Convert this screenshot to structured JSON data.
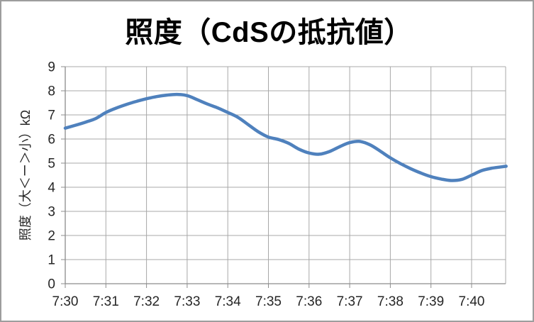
{
  "window": {
    "background": "#FFFFFF",
    "border_color": "#9D9D9D"
  },
  "chart_data": {
    "type": "line",
    "title": "照度（CdSの抵抗値）",
    "ylabel": "照度（大＜ー＞小）kΩ",
    "xlabel": "",
    "x_tick_labels": [
      "7:30",
      "7:31",
      "7:32",
      "7:33",
      "7:34",
      "7:35",
      "7:36",
      "7:37",
      "7:38",
      "7:39",
      "7:40"
    ],
    "y_tick_labels": [
      "0",
      "1",
      "2",
      "3",
      "4",
      "5",
      "6",
      "7",
      "8",
      "9"
    ],
    "ylim": [
      0,
      9
    ],
    "xlim_minutes_after_7_30": [
      0,
      10.85
    ],
    "grid": "on",
    "legend": "none",
    "smooth_line": true,
    "colors": {
      "line": "#4F81BD",
      "grid": "#A8A8A8",
      "axis": "#8C8C8C",
      "tick_text": "#262626",
      "title_text": "#000000"
    },
    "series": [
      {
        "name": "照度（CdSの抵抗値）",
        "x_minutes_after_7_30": [
          0,
          0.25,
          0.5,
          0.75,
          1,
          1.25,
          1.5,
          1.75,
          2,
          2.25,
          2.5,
          2.75,
          3,
          3.25,
          3.5,
          3.75,
          4,
          4.25,
          4.5,
          4.75,
          5,
          5.25,
          5.5,
          5.75,
          6,
          6.25,
          6.5,
          6.75,
          7,
          7.25,
          7.5,
          7.75,
          8,
          8.25,
          8.5,
          8.75,
          9,
          9.25,
          9.5,
          9.75,
          10,
          10.25,
          10.5,
          10.85
        ],
        "y_kohm": [
          6.45,
          6.57,
          6.7,
          6.85,
          7.1,
          7.28,
          7.43,
          7.56,
          7.67,
          7.76,
          7.82,
          7.85,
          7.8,
          7.63,
          7.45,
          7.29,
          7.1,
          6.9,
          6.6,
          6.3,
          6.08,
          5.98,
          5.82,
          5.58,
          5.42,
          5.37,
          5.48,
          5.68,
          5.85,
          5.9,
          5.76,
          5.5,
          5.22,
          4.98,
          4.77,
          4.59,
          4.44,
          4.34,
          4.28,
          4.32,
          4.5,
          4.69,
          4.79,
          4.87
        ]
      }
    ]
  }
}
